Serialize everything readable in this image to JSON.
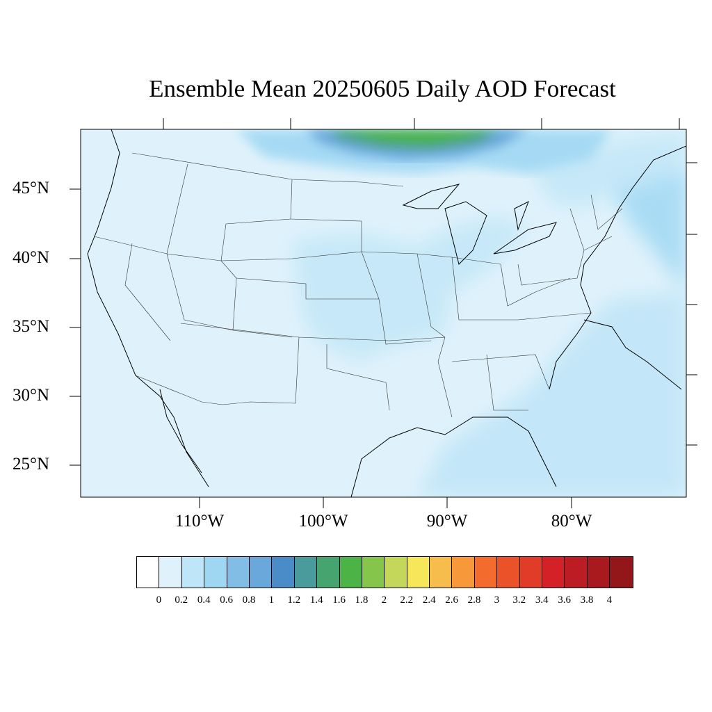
{
  "title": "Ensemble Mean 20250605 Daily AOD Forecast",
  "lat_labels": [
    {
      "text": "45°N",
      "lat": 45
    },
    {
      "text": "40°N",
      "lat": 40
    },
    {
      "text": "35°N",
      "lat": 35
    },
    {
      "text": "30°N",
      "lat": 30
    },
    {
      "text": "25°N",
      "lat": 25
    }
  ],
  "lon_labels": [
    {
      "text": "110°W",
      "lon": -110
    },
    {
      "text": "100°W",
      "lon": -100
    },
    {
      "text": "90°W",
      "lon": -90
    },
    {
      "text": "80°W",
      "lon": -80
    }
  ],
  "colorbar": {
    "colors": [
      "#ffffff",
      "#dff2fb",
      "#bfe6f8",
      "#9fd7f3",
      "#82bde6",
      "#6aa8dc",
      "#4a8cc8",
      "#4a9b9b",
      "#46a46e",
      "#4cb447",
      "#86c54c",
      "#c4d75a",
      "#f5e65a",
      "#f7bd4c",
      "#f7993b",
      "#f36c2e",
      "#ea5229",
      "#e03c28",
      "#d42128",
      "#bc1c24",
      "#a81a1e",
      "#931719"
    ],
    "labels": [
      "0",
      "0.2",
      "0.4",
      "0.6",
      "0.8",
      "1",
      "1.2",
      "1.4",
      "1.6",
      "1.8",
      "2",
      "2.2",
      "2.4",
      "2.6",
      "2.8",
      "3",
      "3.2",
      "3.4",
      "3.6",
      "3.8",
      "4"
    ]
  },
  "map": {
    "extent": {
      "lon_min": -119,
      "lon_max": -70,
      "lat_min": 22.5,
      "lat_max": 49.5
    },
    "background_color": "#dff2fb",
    "aod_regions": [
      {
        "name": "smoke-plume-north",
        "level": 1.6,
        "color": "#4cb447"
      },
      {
        "name": "plains-haze",
        "level": 0.3,
        "color": "#bfe6f8"
      },
      {
        "name": "gulf-haze",
        "level": 0.3,
        "color": "#bfe6f8"
      },
      {
        "name": "atlantic-haze",
        "level": 0.5,
        "color": "#9fd7f3"
      }
    ]
  }
}
